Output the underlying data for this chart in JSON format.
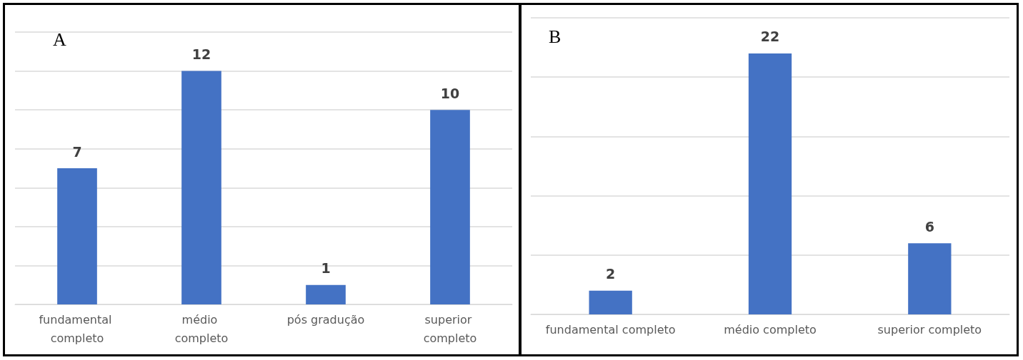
{
  "chart_data": [
    {
      "type": "bar",
      "title": "A",
      "categories": [
        "fundamental completo",
        "médio completo",
        "pós gradução",
        "superior completo"
      ],
      "values": [
        7,
        12,
        1,
        10
      ],
      "color": "#4472c4",
      "ylim": [
        0,
        14
      ],
      "yticks": [
        {
          "value": 0,
          "label": null
        },
        {
          "value": 2,
          "label": null
        },
        {
          "value": 4,
          "label": null
        },
        {
          "value": 6,
          "label": null
        },
        {
          "value": 8,
          "label": null
        },
        {
          "value": 10,
          "label": null
        },
        {
          "value": 12,
          "label": null
        },
        {
          "value": 14,
          "label": null
        }
      ],
      "grid": "y",
      "tick_labels": "x",
      "data_labels": true
    },
    {
      "type": "bar",
      "title": "B",
      "categories": [
        "fundamental completo",
        "médio completo",
        "superior completo"
      ],
      "values": [
        2,
        22,
        6
      ],
      "color": "#4472c4",
      "ylim": [
        0,
        25
      ],
      "yticks": [
        {
          "value": 0,
          "label": null
        },
        {
          "value": 5,
          "label": null
        },
        {
          "value": 10,
          "label": null
        },
        {
          "value": 15,
          "label": null
        },
        {
          "value": 20,
          "label": null
        },
        {
          "value": 25,
          "label": null
        }
      ],
      "grid": "y",
      "tick_labels": "x",
      "data_labels": true
    }
  ]
}
